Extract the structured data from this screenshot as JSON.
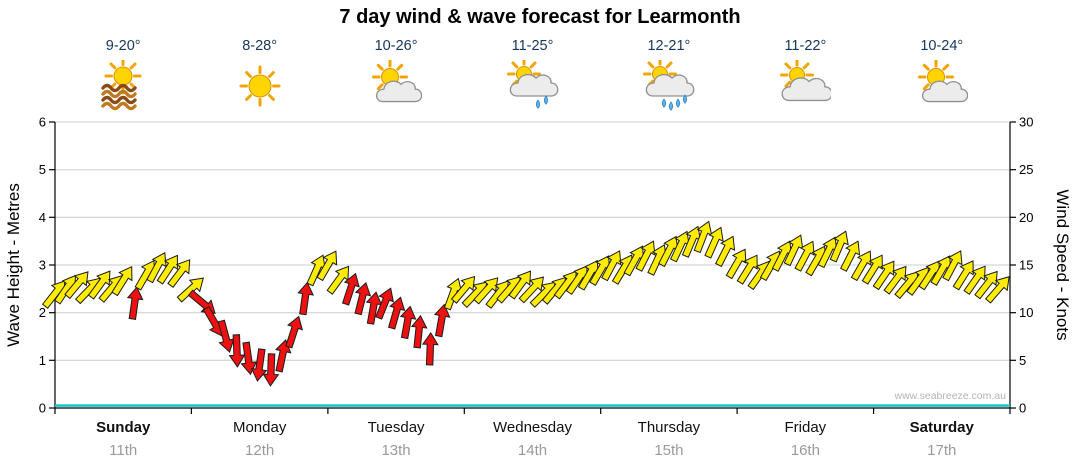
{
  "watermark": "www.seabreeze.com.au",
  "colors": {
    "arrow_yellow": "#ffec00",
    "arrow_red": "#ee1111",
    "arrow_outline": "#1b1b1b",
    "grid": "#cccccc",
    "axis": "#000000",
    "wave_line": "#00c8c8",
    "temp_text": "#16365c",
    "date_text": "#9a9a9a"
  },
  "days": [
    {
      "name": "Sunday",
      "date": "11th",
      "temp": "9-20°",
      "icon": "sun-over-water",
      "bold": true
    },
    {
      "name": "Monday",
      "date": "12th",
      "temp": "8-28°",
      "icon": "sunny",
      "bold": false
    },
    {
      "name": "Tuesday",
      "date": "13th",
      "temp": "10-26°",
      "icon": "partly-cloudy",
      "bold": false
    },
    {
      "name": "Wednesday",
      "date": "14th",
      "temp": "11-25°",
      "icon": "light-showers",
      "bold": false
    },
    {
      "name": "Thursday",
      "date": "15th",
      "temp": "12-21°",
      "icon": "rain-showers",
      "bold": false
    },
    {
      "name": "Friday",
      "date": "16th",
      "temp": "11-22°",
      "icon": "mostly-cloudy",
      "bold": false
    },
    {
      "name": "Saturday",
      "date": "17th",
      "temp": "10-24°",
      "icon": "partly-cloudy",
      "bold": true
    }
  ],
  "chart_data": {
    "type": "scatter",
    "subtype": "wind-arrow-timeseries",
    "title": "7 day wind & wave forecast for Learmonth",
    "hours_span": 168,
    "grid": true,
    "legend": false,
    "left_axis": {
      "label": "Wave Height - Metres",
      "range": [
        0,
        6
      ],
      "ticks": [
        0,
        1,
        2,
        3,
        4,
        5,
        6
      ]
    },
    "right_axis": {
      "label": "Wind Speed - Knots",
      "range": [
        0,
        30
      ],
      "ticks": [
        0,
        5,
        10,
        15,
        20,
        25,
        30
      ]
    },
    "x_axis": {
      "labels": [
        "Sunday 11th",
        "Monday 12th",
        "Tuesday 13th",
        "Wednesday 14th",
        "Thursday 15th",
        "Friday 16th",
        "Saturday 17th"
      ]
    },
    "wind_series": {
      "name": "Wind speed and direction",
      "unit": "knots",
      "point_format": [
        "hour",
        "knots",
        "direction_deg",
        "color"
      ],
      "color_legend": {
        "y": "moderate-fresh (yellow)",
        "r": "light/shifting (red)"
      },
      "points": [
        [
          0,
          12.0,
          38,
          "y"
        ],
        [
          2,
          12.5,
          34,
          "y"
        ],
        [
          4,
          13.0,
          40,
          "y"
        ],
        [
          6,
          12.4,
          44,
          "y"
        ],
        [
          8,
          13.0,
          36,
          "y"
        ],
        [
          10,
          12.6,
          40,
          "y"
        ],
        [
          12,
          13.4,
          32,
          "y"
        ],
        [
          14,
          11.0,
          8,
          "r"
        ],
        [
          16,
          14.0,
          30,
          "y"
        ],
        [
          18,
          14.8,
          28,
          "y"
        ],
        [
          20,
          14.6,
          33,
          "y"
        ],
        [
          22,
          14.2,
          37,
          "y"
        ],
        [
          24,
          12.5,
          48,
          "y"
        ],
        [
          26,
          11.0,
          130,
          "r"
        ],
        [
          28,
          9.0,
          150,
          "r"
        ],
        [
          30,
          7.5,
          165,
          "r"
        ],
        [
          32,
          6.0,
          178,
          "r"
        ],
        [
          34,
          5.2,
          172,
          "r"
        ],
        [
          36,
          4.5,
          188,
          "r"
        ],
        [
          38,
          4.0,
          182,
          "r"
        ],
        [
          40,
          5.5,
          12,
          "r"
        ],
        [
          42,
          8.0,
          18,
          "r"
        ],
        [
          44,
          11.5,
          8,
          "r"
        ],
        [
          46,
          14.5,
          24,
          "y"
        ],
        [
          48,
          15.0,
          30,
          "y"
        ],
        [
          50,
          13.5,
          36,
          "y"
        ],
        [
          52,
          12.5,
          18,
          "r"
        ],
        [
          54,
          11.5,
          14,
          "r"
        ],
        [
          56,
          10.5,
          10,
          "r"
        ],
        [
          58,
          11.0,
          22,
          "r"
        ],
        [
          60,
          10.0,
          16,
          "r"
        ],
        [
          62,
          9.0,
          10,
          "r"
        ],
        [
          64,
          8.0,
          6,
          "r"
        ],
        [
          66,
          6.2,
          2,
          "r"
        ],
        [
          68,
          9.2,
          10,
          "r"
        ],
        [
          70,
          12.0,
          20,
          "y"
        ],
        [
          72,
          12.5,
          40,
          "y"
        ],
        [
          74,
          12.0,
          44,
          "y"
        ],
        [
          76,
          12.4,
          42,
          "y"
        ],
        [
          78,
          12.0,
          38,
          "y"
        ],
        [
          80,
          12.5,
          41,
          "y"
        ],
        [
          82,
          13.0,
          36,
          "y"
        ],
        [
          84,
          12.5,
          43,
          "y"
        ],
        [
          86,
          12.0,
          45,
          "y"
        ],
        [
          88,
          12.4,
          40,
          "y"
        ],
        [
          90,
          13.0,
          37,
          "y"
        ],
        [
          92,
          13.5,
          34,
          "y"
        ],
        [
          94,
          14.0,
          30,
          "y"
        ],
        [
          96,
          14.5,
          30,
          "y"
        ],
        [
          98,
          15.0,
          28,
          "y"
        ],
        [
          100,
          14.6,
          31,
          "y"
        ],
        [
          102,
          15.5,
          29,
          "y"
        ],
        [
          104,
          16.0,
          27,
          "y"
        ],
        [
          106,
          15.6,
          25,
          "y"
        ],
        [
          108,
          16.5,
          27,
          "y"
        ],
        [
          110,
          17.0,
          25,
          "y"
        ],
        [
          112,
          17.5,
          23,
          "y"
        ],
        [
          114,
          18.0,
          21,
          "y"
        ],
        [
          116,
          17.4,
          24,
          "y"
        ],
        [
          118,
          16.5,
          27,
          "y"
        ],
        [
          120,
          15.2,
          30,
          "y"
        ],
        [
          122,
          14.6,
          32,
          "y"
        ],
        [
          124,
          14.0,
          35,
          "y"
        ],
        [
          126,
          15.0,
          30,
          "y"
        ],
        [
          128,
          16.0,
          27,
          "y"
        ],
        [
          130,
          16.6,
          25,
          "y"
        ],
        [
          132,
          16.0,
          28,
          "y"
        ],
        [
          134,
          15.5,
          30,
          "y"
        ],
        [
          136,
          16.4,
          26,
          "y"
        ],
        [
          138,
          17.0,
          23,
          "y"
        ],
        [
          140,
          16.0,
          27,
          "y"
        ],
        [
          142,
          15.0,
          30,
          "y"
        ],
        [
          144,
          14.6,
          32,
          "y"
        ],
        [
          146,
          14.0,
          34,
          "y"
        ],
        [
          148,
          13.5,
          37,
          "y"
        ],
        [
          150,
          13.0,
          40,
          "y"
        ],
        [
          152,
          13.4,
          36,
          "y"
        ],
        [
          154,
          14.0,
          33,
          "y"
        ],
        [
          156,
          14.5,
          30,
          "y"
        ],
        [
          158,
          15.0,
          28,
          "y"
        ],
        [
          160,
          14.0,
          32,
          "y"
        ],
        [
          162,
          13.5,
          35,
          "y"
        ],
        [
          164,
          13.0,
          38,
          "y"
        ],
        [
          166,
          12.5,
          41,
          "y"
        ]
      ]
    },
    "wave_series": {
      "name": "Wave height",
      "unit": "metres",
      "constant_value": 0.05
    }
  }
}
